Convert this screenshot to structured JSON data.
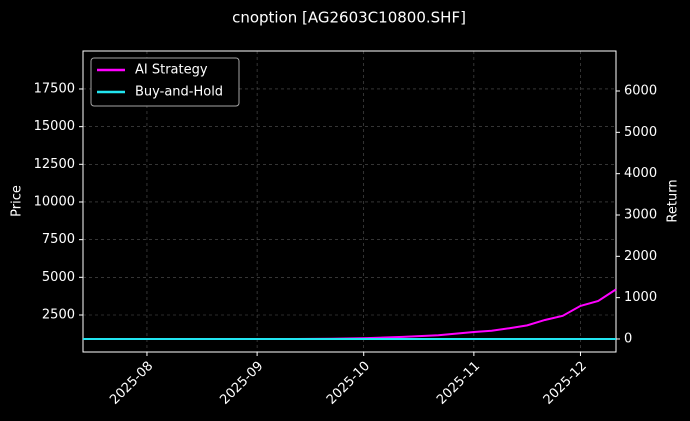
{
  "chart_data": {
    "type": "line",
    "title": "cnoption [AG2603C10800.SHF]",
    "ylabel": "Price",
    "y2label": "Return",
    "x": [
      0,
      10,
      20,
      30,
      40,
      50,
      60,
      70,
      80,
      90,
      100,
      110,
      115,
      120,
      125,
      130,
      135,
      140,
      145,
      150
    ],
    "xlim": [
      0,
      150
    ],
    "xticks": [
      {
        "value": 18,
        "label": "2025-08"
      },
      {
        "value": 49,
        "label": "2025-09"
      },
      {
        "value": 79,
        "label": "2025-10"
      },
      {
        "value": 110,
        "label": "2025-11"
      },
      {
        "value": 140,
        "label": "2025-12"
      }
    ],
    "ylim": [
      44,
      20020
    ],
    "yticks": [
      2500,
      5000,
      7500,
      10000,
      12500,
      15000,
      17500
    ],
    "y2lim": [
      -315,
      6968
    ],
    "y2ticks": [
      0,
      1000,
      2000,
      3000,
      4000,
      5000,
      6000
    ],
    "grid": true,
    "legend": "upper left",
    "series": [
      {
        "name": "AI Strategy",
        "color": "#ff00ff",
        "axis": "y2",
        "values": [
          0,
          0,
          0,
          0,
          0,
          0,
          0,
          5,
          20,
          50,
          90,
          170,
          200,
          260,
          330,
          460,
          560,
          800,
          920,
          1200
        ]
      },
      {
        "name": "Buy-and-Hold",
        "color": "#22e5f0",
        "axis": "y2",
        "values": [
          0,
          0,
          0,
          0,
          0,
          0,
          0,
          0,
          0,
          0,
          0,
          0,
          0,
          0,
          0,
          0,
          0,
          0,
          0,
          0
        ]
      }
    ]
  }
}
